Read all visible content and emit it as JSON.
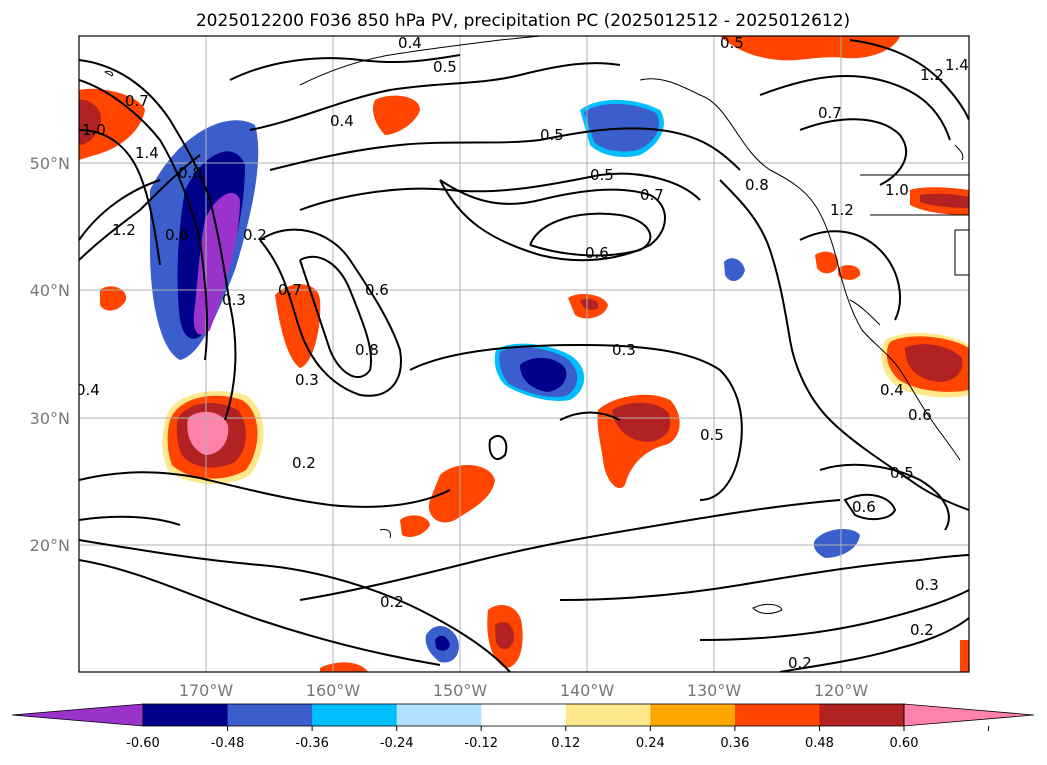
{
  "title": "2025012200 F036 850 hPa PV, precipitation PC (2025012512 - 2025012612)",
  "map": {
    "lat_labels": [
      "50°N",
      "40°N",
      "30°N",
      "20°N"
    ],
    "lon_labels": [
      "170°W",
      "160°W",
      "150°W",
      "140°W",
      "130°W",
      "120°W"
    ],
    "grid": true,
    "lat_range": [
      10,
      60
    ],
    "lon_range": [
      -180,
      -110
    ],
    "contour_field": "850 hPa PV",
    "contour_labels": [
      "0.7",
      "1.0",
      "1.4",
      "0.8",
      "0.6",
      "1.2",
      "0.4",
      "0.5",
      "0.5",
      "0.4",
      "0.5",
      "0.5",
      "0.7",
      "0.6",
      "0.7",
      "0.8",
      "1.2",
      "1.0",
      "1.2",
      "1.4",
      "0.2",
      "0.3",
      "0.7",
      "0.6",
      "0.8",
      "0.3",
      "0.3",
      "0.4",
      "0.2",
      "0.5",
      "0.4",
      "0.6",
      "0.5",
      "0.6",
      "0.2",
      "0.3",
      "0.2",
      "0.2"
    ]
  },
  "colorbar": {
    "levels": [
      "-0.60",
      "-0.48",
      "-0.36",
      "-0.24",
      "-0.12",
      "0.12",
      "0.24",
      "0.36",
      "0.48",
      "0.60"
    ],
    "colors": [
      "#9933cc",
      "#00008b",
      "#3a5fcd",
      "#00bfff",
      "#b0e2ff",
      "#ffffff",
      "#ffe88c",
      "#ffa500",
      "#ff4500",
      "#b22222",
      "#ff82ab"
    ],
    "extend": "both"
  }
}
